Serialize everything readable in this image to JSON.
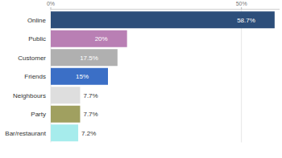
{
  "chart_data": {
    "type": "bar",
    "orientation": "horizontal",
    "categories": [
      "Online",
      "Public",
      "Customer",
      "Friends",
      "Neighbours",
      "Party",
      "Bar/restaurant"
    ],
    "values": [
      58.7,
      20,
      17.5,
      15,
      7.7,
      7.7,
      7.2
    ],
    "value_labels": [
      "58.7%",
      "20%",
      "17.5%",
      "15%",
      "7.7%",
      "7.7%",
      "7.2%"
    ],
    "colors": [
      "#2d4e7a",
      "#b97fb4",
      "#b0b0b0",
      "#3b6fc6",
      "#dedede",
      "#a0a060",
      "#a6ecec"
    ],
    "xlim": [
      0,
      60
    ],
    "xticks": [
      {
        "value": 0,
        "label": "0%"
      },
      {
        "value": 50,
        "label": "50%"
      }
    ],
    "grid": true,
    "data_labels": true
  }
}
